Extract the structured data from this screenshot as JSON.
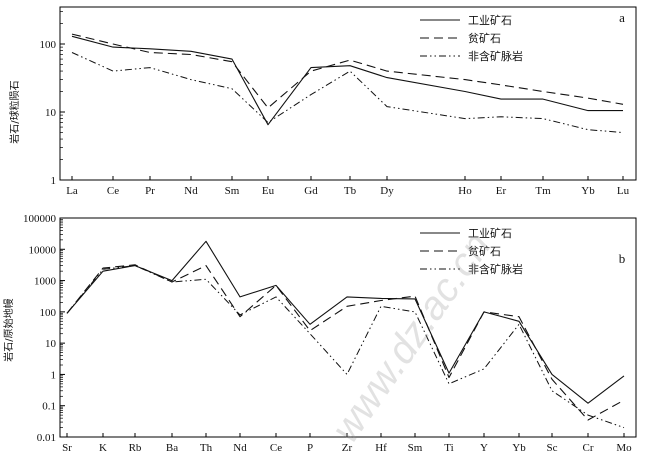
{
  "chart_data": [
    {
      "panel": "a",
      "type": "line",
      "yscale": "log",
      "ylim": [
        1,
        400
      ],
      "ylabel": "岩石/球粒陨石",
      "yticks": [
        "1",
        "10",
        "100"
      ],
      "categories": [
        "La",
        "Ce",
        "Pr",
        "Nd",
        "Sm",
        "Eu",
        "Gd",
        "Tb",
        "Dy",
        "Ho",
        "Er",
        "Tm",
        "Yb",
        "Lu"
      ],
      "series": [
        {
          "name": "工业矿石",
          "values": [
            130,
            90,
            85,
            78,
            60,
            6.5,
            45,
            48,
            32,
            20,
            15.5,
            15.5,
            10.5,
            10.5
          ]
        },
        {
          "name": "贫矿石",
          "values": [
            140,
            100,
            75,
            70,
            55,
            11.5,
            40,
            58,
            40,
            30,
            25,
            20,
            16,
            13
          ]
        },
        {
          "name": "非含矿脉岩",
          "values": [
            75,
            40,
            45,
            30,
            22,
            7,
            18,
            40,
            12,
            8,
            8.5,
            8,
            5.5,
            5
          ]
        }
      ]
    },
    {
      "panel": "b",
      "type": "line",
      "yscale": "log",
      "ylim": [
        0.01,
        100000
      ],
      "ylabel": "岩石/原始地幔",
      "yticks": [
        "0.01",
        "0.1",
        "1",
        "10",
        "100",
        "1000",
        "10000",
        "100000"
      ],
      "categories": [
        "Sr",
        "K",
        "Rb",
        "Ba",
        "Th",
        "Nd",
        "Ce",
        "P",
        "Zr",
        "Hf",
        "Sm",
        "Ti",
        "Y",
        "Yb",
        "Sc",
        "Cr",
        "Mo"
      ],
      "series": [
        {
          "name": "工业矿石",
          "values": [
            90,
            2000,
            3000,
            1000,
            18000,
            300,
            700,
            40,
            300,
            270,
            260,
            1.1,
            100,
            50,
            1,
            0.12,
            0.9
          ]
        },
        {
          "name": "贫矿石",
          "values": [
            90,
            2500,
            3200,
            900,
            3000,
            70,
            700,
            25,
            150,
            230,
            320,
            0.8,
            100,
            70,
            0.7,
            0.035,
            0.15
          ]
        },
        {
          "name": "非含矿脉岩",
          "values": [
            90,
            2300,
            3000,
            900,
            1100,
            80,
            300,
            20,
            1,
            150,
            100,
            0.5,
            1.5,
            40,
            0.3,
            0.05,
            0.02
          ]
        }
      ]
    }
  ],
  "legend": [
    "工业矿石",
    "贫矿石",
    "非含矿脉岩"
  ],
  "watermark": "www.dz.ac.cn"
}
